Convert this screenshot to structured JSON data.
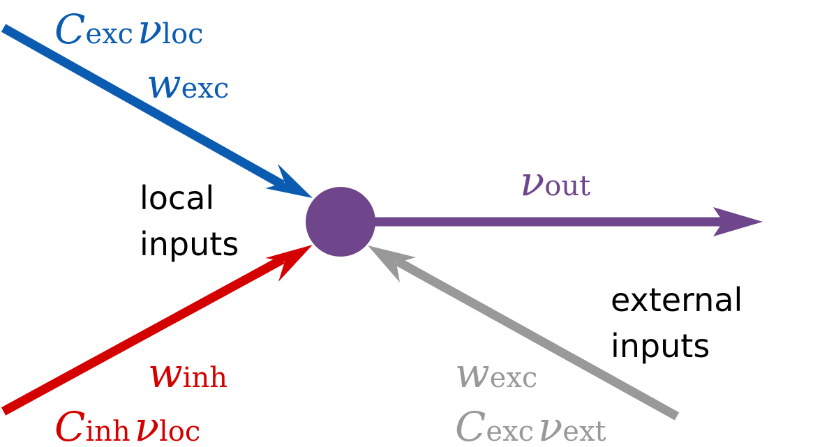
{
  "colors": {
    "excitatory_local": "#0b5cb0",
    "inhibitory_local": "#d40000",
    "external": "#999999",
    "neuron": "#6f458c",
    "text": "#000000"
  },
  "labels": {
    "local_inputs": [
      "local",
      "inputs"
    ],
    "external_inputs": [
      "external",
      "inputs"
    ]
  },
  "excitatory_local": {
    "count": {
      "main": "C",
      "sub": "exc"
    },
    "rate": {
      "main": "ν",
      "sub": "loc"
    },
    "weight": {
      "main": "w",
      "sub": "exc"
    }
  },
  "inhibitory_local": {
    "weight": {
      "main": "w",
      "sub": "inh"
    },
    "count": {
      "main": "C",
      "sub": "inh"
    },
    "rate": {
      "main": "ν",
      "sub": "loc"
    }
  },
  "external": {
    "weight": {
      "main": "w",
      "sub": "exc"
    },
    "count": {
      "main": "C",
      "sub": "exc"
    },
    "rate": {
      "main": "ν",
      "sub": "ext"
    }
  },
  "output": {
    "rate": {
      "main": "ν",
      "sub": "out"
    }
  }
}
